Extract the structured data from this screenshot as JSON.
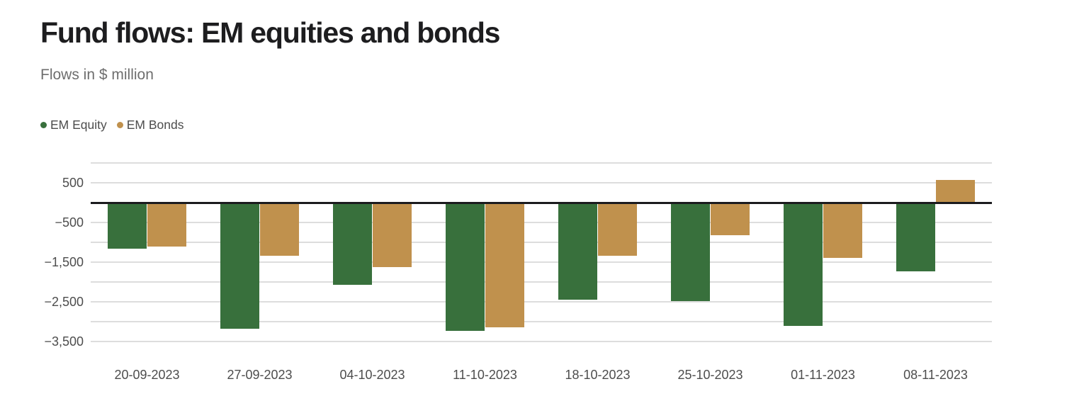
{
  "header": {
    "title": "Fund flows: EM equities and bonds",
    "subtitle": "Flows in $ million"
  },
  "legend": {
    "items": [
      {
        "label": "EM Equity",
        "color": "#38703c",
        "icon": "circle-swatch-icon"
      },
      {
        "label": "EM Bonds",
        "color": "#c0914d",
        "icon": "circle-swatch-icon"
      }
    ]
  },
  "chart_data": {
    "type": "bar",
    "title": "Fund flows: EM equities and bonds",
    "subtitle": "Flows in $ million",
    "unit": "$ million",
    "categories": [
      "20-09-2023",
      "27-09-2023",
      "04-10-2023",
      "11-10-2023",
      "18-10-2023",
      "25-10-2023",
      "01-11-2023",
      "08-11-2023"
    ],
    "series": [
      {
        "name": "EM Equity",
        "color": "#38703c",
        "values": [
          -1160,
          -3170,
          -2080,
          -3240,
          -2440,
          -2490,
          -3100,
          -1730
        ]
      },
      {
        "name": "EM Bonds",
        "color": "#c0914d",
        "values": [
          -1110,
          -1340,
          -1630,
          -3150,
          -1340,
          -830,
          -1400,
          580
        ]
      }
    ],
    "ylim": [
      -3500,
      1000
    ],
    "grid_step": 500,
    "grid": true,
    "legend_position": "top-left",
    "ytick_labels": [
      {
        "value": 500,
        "label": "500"
      },
      {
        "value": -500,
        "label": "−500"
      },
      {
        "value": -1500,
        "label": "−1,500"
      },
      {
        "value": -2500,
        "label": "−2,500"
      },
      {
        "value": -3500,
        "label": "−3,500"
      }
    ]
  },
  "colors": {
    "equity": "#38703c",
    "bonds": "#c0914d",
    "zero_line": "#1b1b1e",
    "gridline": "#dddddd",
    "title_text": "#1d1d1f",
    "subtitle_text": "#6e6e6e",
    "axis_text": "#4d4d4d",
    "background": "#ffffff"
  }
}
